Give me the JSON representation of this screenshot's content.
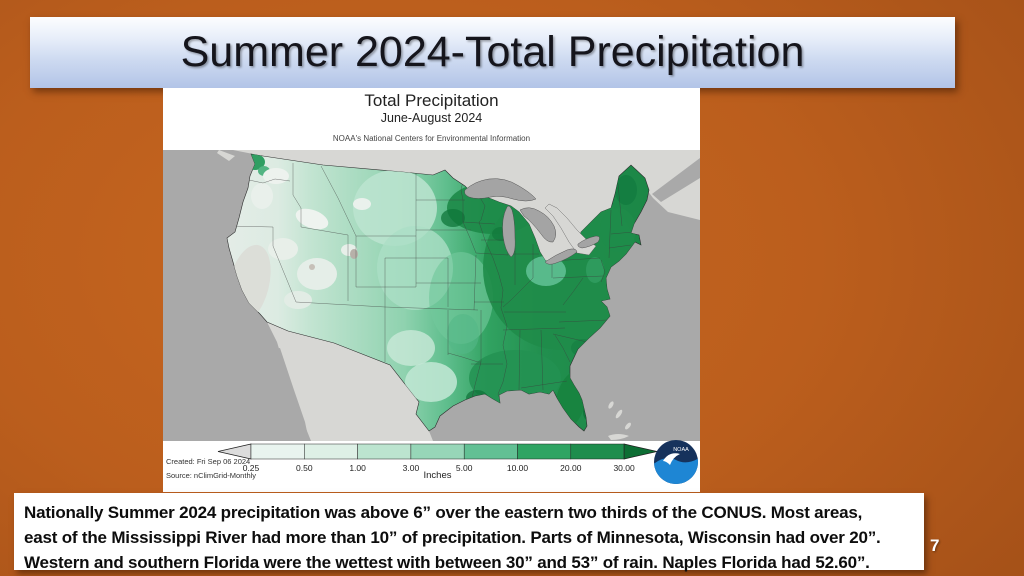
{
  "slide": {
    "title": "Summer 2024-Total Precipitation",
    "page_number": "7"
  },
  "map_card": {
    "title": "Total Precipitation",
    "subtitle": "June-August 2024",
    "attribution": "NOAA's National Centers for Environmental Information",
    "created": "Created: Fri Sep 06 2024",
    "source": "Source: nClimGrid-Monthly",
    "logo_text": "NOAA",
    "legend": {
      "unit_label": "Inches",
      "ticks": [
        "0.25",
        "0.50",
        "1.00",
        "3.00",
        "5.00",
        "10.00",
        "20.00",
        "30.00"
      ],
      "segment_colors": [
        "#e9f4ef",
        "#def0e6",
        "#bce4cf",
        "#97d6b8",
        "#62c094",
        "#2fa463",
        "#1e8d4d"
      ],
      "left_arrow_color": "#dcdcdc",
      "right_arrow_color": "#0d6e34"
    },
    "map_palette": {
      "ocean": "#a9a9a9",
      "foreign_land": "#d7d7d4",
      "lowest_precip": "#dcded8",
      "highest_precip": "#0e7137"
    }
  },
  "caption": {
    "lines": [
      "Nationally Summer 2024 precipitation was above 6” over the eastern  two thirds of the CONUS.  Most areas,",
      "east of the Mississippi River had more than 10” of precipitation.  Parts of Minnesota, Wisconsin had over 20”.",
      "Western and southern Florida were the wettest with between 30” and 53” of rain.  Naples Florida had 52.60”."
    ]
  }
}
